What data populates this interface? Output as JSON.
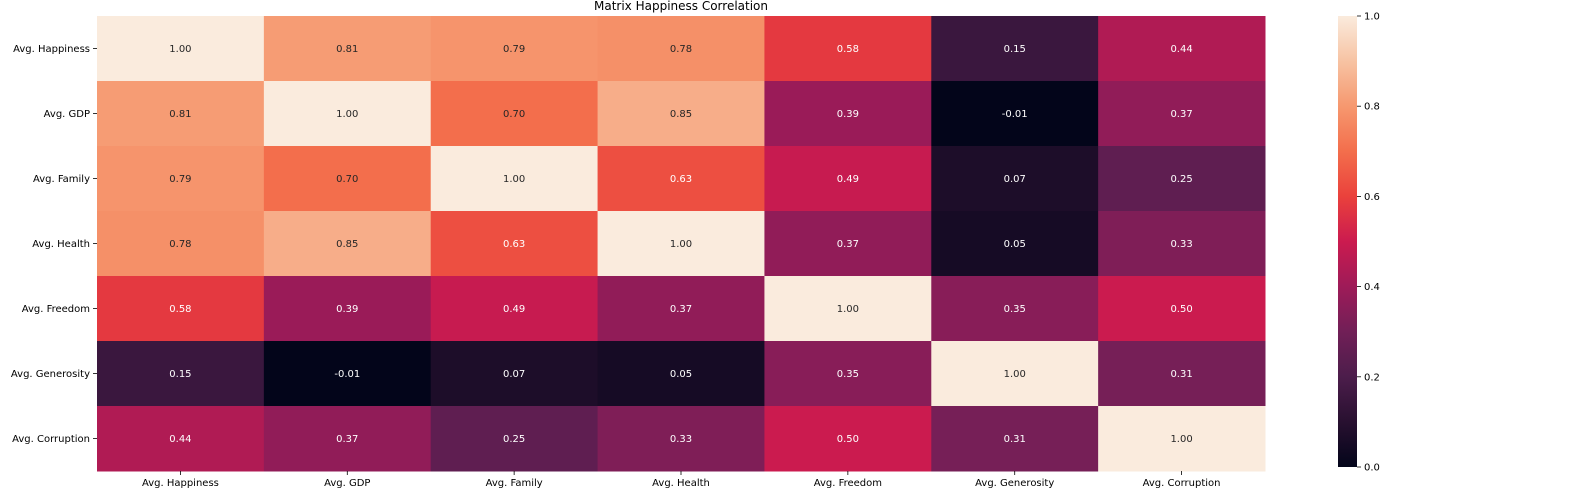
{
  "chart_data": {
    "type": "heatmap",
    "title": "Matrix Happiness Correlation",
    "xlabel": "",
    "ylabel": "",
    "x_categories": [
      "Avg. Happiness",
      "Avg. GDP",
      "Avg. Family",
      "Avg. Health",
      "Avg. Freedom",
      "Avg. Generosity",
      "Avg. Corruption"
    ],
    "y_categories": [
      "Avg. Happiness",
      "Avg. GDP",
      "Avg. Family",
      "Avg. Health",
      "Avg. Freedom",
      "Avg. Generosity",
      "Avg. Corruption"
    ],
    "values": [
      [
        1.0,
        0.81,
        0.79,
        0.78,
        0.58,
        0.15,
        0.44
      ],
      [
        0.81,
        1.0,
        0.7,
        0.85,
        0.39,
        -0.01,
        0.37
      ],
      [
        0.79,
        0.7,
        1.0,
        0.63,
        0.49,
        0.07,
        0.25
      ],
      [
        0.78,
        0.85,
        0.63,
        1.0,
        0.37,
        0.05,
        0.33
      ],
      [
        0.58,
        0.39,
        0.49,
        0.37,
        1.0,
        0.35,
        0.5
      ],
      [
        0.15,
        -0.01,
        0.07,
        0.05,
        0.35,
        1.0,
        0.31
      ],
      [
        0.44,
        0.37,
        0.25,
        0.33,
        0.5,
        0.31,
        1.0
      ]
    ],
    "value_format": "2 decimals",
    "colormap": "rocket",
    "colorbar": {
      "range": [
        0.0,
        1.0
      ],
      "ticks": [
        "0.0",
        "0.2",
        "0.4",
        "0.6",
        "0.8",
        "1.0"
      ],
      "tick_values": [
        0.0,
        0.2,
        0.4,
        0.6,
        0.8,
        1.0
      ],
      "placement": "right"
    }
  }
}
